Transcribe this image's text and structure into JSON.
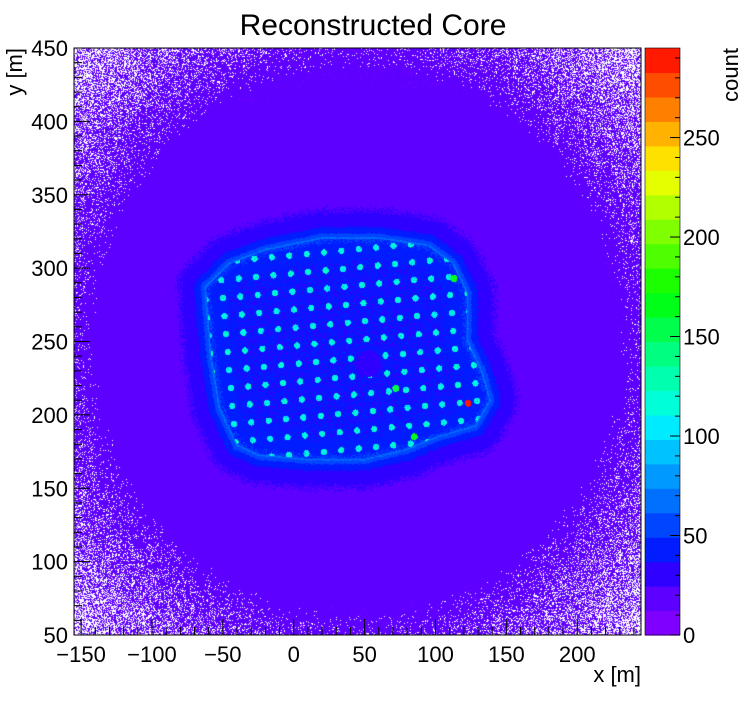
{
  "chart_data": {
    "type": "heatmap",
    "title": "Reconstructed Core",
    "xlabel": "x [m]",
    "ylabel": "y [m]",
    "zlabel": "count",
    "xlim": [
      -155,
      245
    ],
    "ylim": [
      50,
      450
    ],
    "zlim": [
      0,
      295
    ],
    "x_ticks": [
      -150,
      -100,
      -50,
      0,
      50,
      100,
      150,
      200
    ],
    "y_ticks": [
      50,
      100,
      150,
      200,
      250,
      300,
      350,
      400,
      450
    ],
    "z_ticks": [
      0,
      50,
      100,
      150,
      200,
      250
    ],
    "palette": [
      "#7f00ff",
      "#5d00ff",
      "#2f00ff",
      "#001cff",
      "#0045ff",
      "#0070ff",
      "#0099ff",
      "#00c2ff",
      "#00ebff",
      "#00ffd9",
      "#00ffaf",
      "#00ff80",
      "#00ff4c",
      "#00ff18",
      "#1bff00",
      "#4dff00",
      "#80ff00",
      "#b2ff00",
      "#e5ff00",
      "#ffe100",
      "#ffb200",
      "#ff8000",
      "#ff4d00",
      "#ff1a00"
    ],
    "footprint_polygon": [
      [
        -62,
        287
      ],
      [
        -45,
        303
      ],
      [
        -20,
        312
      ],
      [
        20,
        320
      ],
      [
        60,
        320
      ],
      [
        95,
        315
      ],
      [
        112,
        303
      ],
      [
        122,
        283
      ],
      [
        122,
        250
      ],
      [
        132,
        230
      ],
      [
        138,
        210
      ],
      [
        128,
        193
      ],
      [
        100,
        185
      ],
      [
        80,
        177
      ],
      [
        50,
        170
      ],
      [
        10,
        170
      ],
      [
        -25,
        173
      ],
      [
        -40,
        180
      ],
      [
        -52,
        205
      ],
      [
        -58,
        240
      ]
    ],
    "central_hole": [
      53,
      235
    ],
    "hot_spots": [
      {
        "x": 123,
        "y": 208,
        "value": 285
      },
      {
        "x": 113,
        "y": 293,
        "value": 170
      },
      {
        "x": 85,
        "y": 185,
        "value": 165
      },
      {
        "x": 72,
        "y": 218,
        "value": 150
      }
    ]
  }
}
